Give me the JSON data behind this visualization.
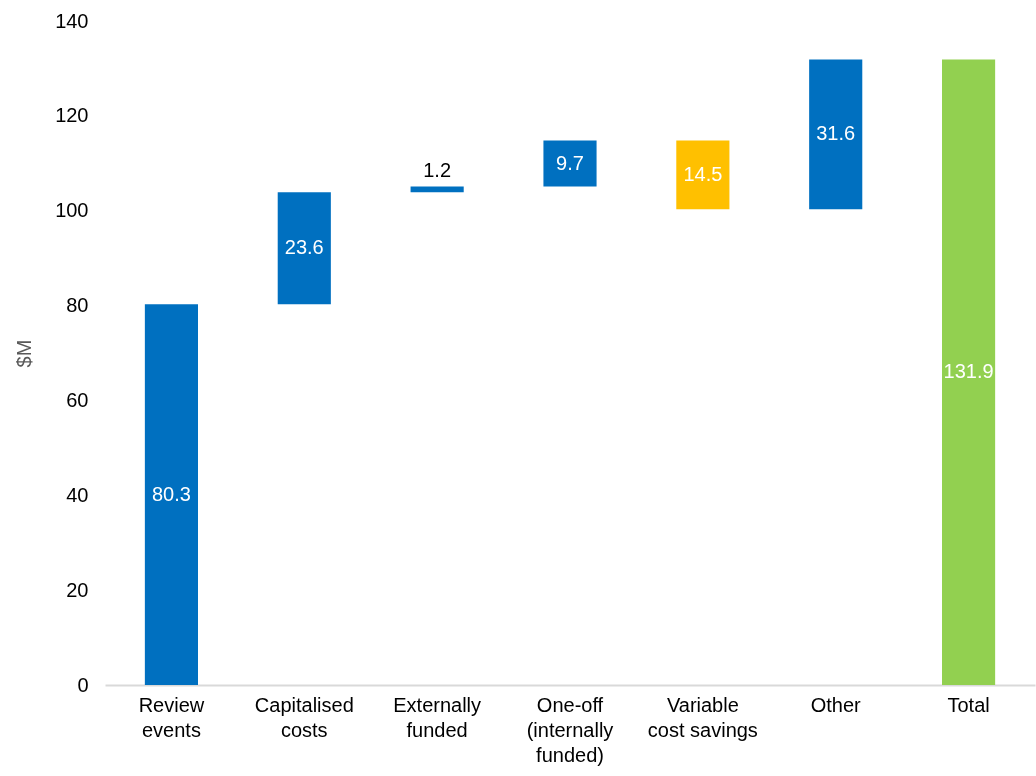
{
  "chart_data": {
    "type": "bar",
    "ylabel": "$M",
    "categories": [
      "Review\nevents",
      "Capitalised\ncosts",
      "Externally\nfunded",
      "One-off\n(internally\nfunded)",
      "Variable\ncost savings",
      "Other",
      "Total"
    ],
    "values": [
      80.3,
      23.6,
      1.2,
      9.7,
      14.5,
      31.6,
      131.9
    ],
    "base": [
      0,
      80.3,
      103.9,
      105.1,
      100.3,
      100.3,
      0
    ],
    "colors": [
      "#0070c0",
      "#0070c0",
      "#0070c0",
      "#0070c0",
      "#ffc000",
      "#0070c0",
      "#92d050"
    ],
    "ylim": [
      0,
      140
    ],
    "yticks": [
      0,
      20,
      40,
      60,
      80,
      100,
      120,
      140
    ],
    "data_labels": true
  }
}
